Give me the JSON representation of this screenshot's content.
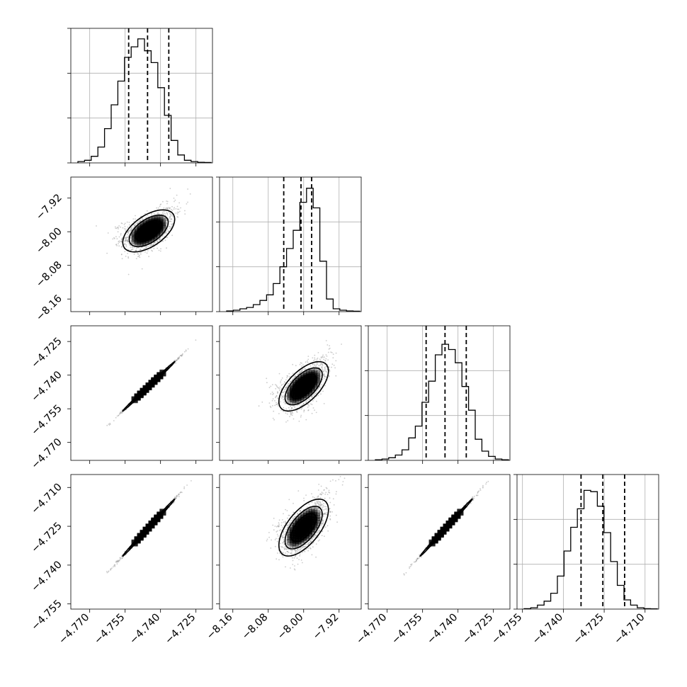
{
  "chart_data": {
    "type": "corner",
    "parameters": [
      {
        "range": [
          -4.778,
          -4.718
        ],
        "ticks": [
          "−4.770",
          "−4.755",
          "−4.740",
          "−4.725"
        ],
        "tick_values": [
          -4.77,
          -4.755,
          -4.74,
          -4.725
        ]
      },
      {
        "range": [
          -8.19,
          -7.87
        ],
        "ticks": [
          "−8.16",
          "−8.08",
          "−8.00",
          "−7.92"
        ],
        "tick_values": [
          -8.16,
          -8.08,
          -8.0,
          -7.92
        ]
      },
      {
        "range": [
          -4.778,
          -4.718
        ],
        "ticks": [
          "−4.770",
          "−4.755",
          "−4.740",
          "−4.725"
        ],
        "tick_values": [
          -4.77,
          -4.755,
          -4.74,
          -4.725
        ]
      },
      {
        "range": [
          -4.757,
          -4.705
        ],
        "ticks": [
          "−4.755",
          "−4.740",
          "−4.725",
          "−4.710"
        ],
        "tick_values": [
          -4.755,
          -4.74,
          -4.725,
          -4.71
        ]
      }
    ],
    "histograms": [
      {
        "bins": 20,
        "counts": [
          1,
          2,
          5,
          12,
          26,
          44,
          62,
          80,
          88,
          94,
          85,
          76,
          57,
          36,
          17,
          6,
          2,
          1,
          0.5,
          0.3
        ],
        "quantiles": [
          -4.7535,
          -4.7455,
          -4.7365
        ],
        "ymax": 102
      },
      {
        "bins": 20,
        "counts": [
          0.5,
          1,
          2,
          3,
          5,
          8,
          12,
          20,
          32,
          45,
          58,
          78,
          88,
          74,
          36,
          9,
          2,
          1,
          0.5,
          0.3
        ],
        "quantiles": [
          -8.045,
          -8.006,
          -7.982
        ],
        "ymax": 96
      },
      {
        "bins": 20,
        "counts": [
          0.5,
          1,
          2,
          4,
          8,
          17,
          26,
          44,
          60,
          80,
          88,
          84,
          74,
          56,
          38,
          16,
          7,
          3,
          1,
          0.5
        ],
        "quantiles": [
          -4.7535,
          -4.7455,
          -4.7365
        ],
        "ymax": 102
      },
      {
        "bins": 20,
        "counts": [
          0.3,
          1,
          3,
          6,
          12,
          25,
          44,
          62,
          76,
          90,
          89,
          78,
          58,
          36,
          18,
          7,
          3,
          1,
          0.3,
          0.2
        ],
        "quantiles": [
          -4.7335,
          -4.7255,
          -4.7175
        ],
        "ymax": 102
      }
    ],
    "pair_plots": [
      {
        "x_param": 0,
        "y_param": 1,
        "center": [
          -4.745,
          -7.998
        ],
        "sd": [
          0.0055,
          0.025
        ],
        "rho": 0.55
      },
      {
        "x_param": 0,
        "y_param": 2,
        "center": [
          -4.745,
          -4.745
        ],
        "sd": [
          0.0055,
          0.0055
        ],
        "rho": 0.998
      },
      {
        "x_param": 1,
        "y_param": 2,
        "center": [
          -8.0,
          -4.745
        ],
        "sd": [
          0.028,
          0.0055
        ],
        "rho": 0.62
      },
      {
        "x_param": 0,
        "y_param": 3,
        "center": [
          -4.745,
          -4.7255
        ],
        "sd": [
          0.0055,
          0.0055
        ],
        "rho": 0.998
      },
      {
        "x_param": 1,
        "y_param": 3,
        "center": [
          -8.0,
          -4.7255
        ],
        "sd": [
          0.028,
          0.0055
        ],
        "rho": 0.62
      },
      {
        "x_param": 2,
        "y_param": 3,
        "center": [
          -4.745,
          -4.7255
        ],
        "sd": [
          0.0055,
          0.0055
        ],
        "rho": 0.998
      }
    ],
    "contour_levels_sigma": [
      0.5,
      1.0,
      1.5,
      2.0
    ],
    "grid": true,
    "colors": {
      "lines": "#000000",
      "grid": "#b0b0b0",
      "density": "#000000"
    }
  }
}
